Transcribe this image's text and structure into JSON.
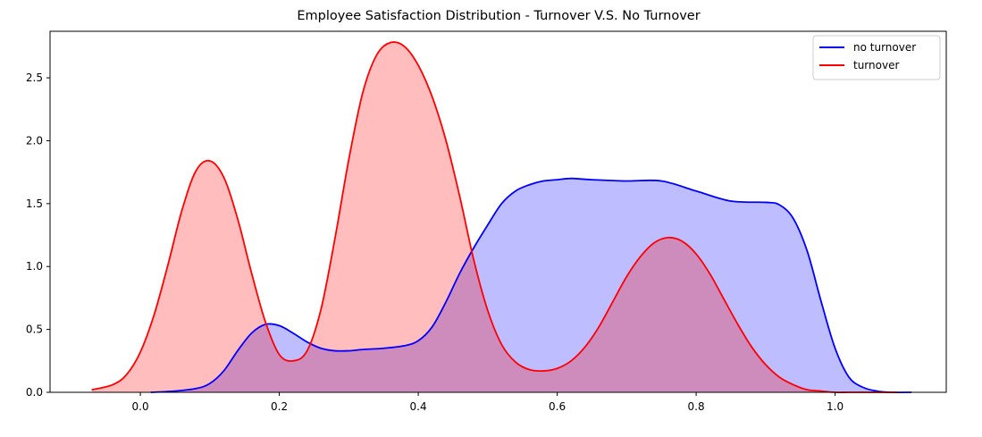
{
  "chart_data": {
    "type": "area",
    "title": "Employee Satisfaction Distribution - Turnover V.S. No Turnover",
    "xlabel": "",
    "ylabel": "",
    "xlim": [
      -0.13,
      1.16
    ],
    "ylim": [
      0,
      2.87
    ],
    "x_ticks": [
      0.0,
      0.2,
      0.4,
      0.6,
      0.8,
      1.0
    ],
    "x_tick_labels": [
      "0.0",
      "0.2",
      "0.4",
      "0.6",
      "0.8",
      "1.0"
    ],
    "y_ticks": [
      0.0,
      0.5,
      1.0,
      1.5,
      2.0,
      2.5
    ],
    "y_tick_labels": [
      "0.0",
      "0.5",
      "1.0",
      "1.5",
      "2.0",
      "2.5"
    ],
    "grid": false,
    "legend_position": "top-right",
    "series": [
      {
        "name": "no turnover",
        "line_color": "#0000ff",
        "fill_color": "#0000ff",
        "fill_opacity": 0.26,
        "x": [
          0.015,
          0.05,
          0.08,
          0.1,
          0.12,
          0.14,
          0.16,
          0.18,
          0.2,
          0.22,
          0.24,
          0.26,
          0.28,
          0.3,
          0.32,
          0.35,
          0.38,
          0.4,
          0.42,
          0.44,
          0.46,
          0.48,
          0.5,
          0.52,
          0.54,
          0.56,
          0.58,
          0.6,
          0.62,
          0.65,
          0.7,
          0.75,
          0.8,
          0.85,
          0.9,
          0.92,
          0.94,
          0.96,
          0.98,
          1.0,
          1.02,
          1.04,
          1.06,
          1.08,
          1.11
        ],
        "y": [
          0.0,
          0.01,
          0.03,
          0.07,
          0.17,
          0.33,
          0.47,
          0.54,
          0.53,
          0.47,
          0.4,
          0.35,
          0.33,
          0.33,
          0.34,
          0.35,
          0.37,
          0.41,
          0.52,
          0.72,
          0.95,
          1.15,
          1.33,
          1.5,
          1.6,
          1.65,
          1.68,
          1.69,
          1.7,
          1.69,
          1.68,
          1.68,
          1.6,
          1.52,
          1.51,
          1.49,
          1.38,
          1.12,
          0.72,
          0.35,
          0.12,
          0.04,
          0.01,
          0.0,
          0.0
        ]
      },
      {
        "name": "turnover",
        "line_color": "#ff0000",
        "fill_color": "#ff0000",
        "fill_opacity": 0.26,
        "x": [
          -0.07,
          -0.04,
          -0.02,
          0.0,
          0.02,
          0.04,
          0.06,
          0.08,
          0.1,
          0.12,
          0.14,
          0.16,
          0.18,
          0.2,
          0.22,
          0.24,
          0.26,
          0.28,
          0.3,
          0.32,
          0.34,
          0.36,
          0.38,
          0.4,
          0.42,
          0.44,
          0.46,
          0.48,
          0.5,
          0.52,
          0.54,
          0.56,
          0.58,
          0.6,
          0.62,
          0.64,
          0.66,
          0.68,
          0.7,
          0.72,
          0.74,
          0.76,
          0.78,
          0.8,
          0.82,
          0.84,
          0.86,
          0.88,
          0.9,
          0.92,
          0.94,
          0.96,
          0.98,
          1.0,
          1.02,
          1.04,
          1.06,
          1.09
        ],
        "y": [
          0.02,
          0.06,
          0.14,
          0.32,
          0.62,
          1.02,
          1.45,
          1.76,
          1.84,
          1.71,
          1.38,
          0.95,
          0.56,
          0.3,
          0.25,
          0.33,
          0.66,
          1.22,
          1.85,
          2.38,
          2.68,
          2.78,
          2.75,
          2.6,
          2.35,
          2.0,
          1.55,
          1.05,
          0.65,
          0.38,
          0.24,
          0.18,
          0.17,
          0.19,
          0.25,
          0.36,
          0.52,
          0.72,
          0.92,
          1.08,
          1.19,
          1.23,
          1.2,
          1.1,
          0.94,
          0.74,
          0.54,
          0.36,
          0.22,
          0.12,
          0.06,
          0.02,
          0.01,
          0.0,
          0.0,
          0.0,
          0.0,
          0.0
        ]
      }
    ]
  }
}
